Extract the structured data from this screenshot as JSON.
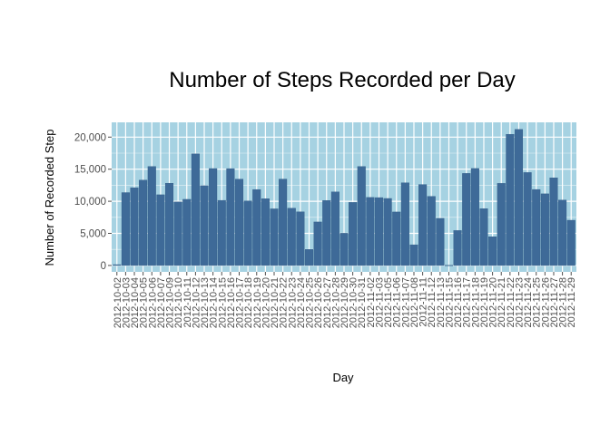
{
  "chart_data": {
    "type": "bar",
    "title": "Number of Steps Recorded per Day",
    "xlabel": "Day",
    "ylabel": "Number of Recorded Step",
    "ylim": [
      -1000,
      22300
    ],
    "yticks": [
      0,
      5000,
      10000,
      15000,
      20000
    ],
    "ytick_labels": [
      "0",
      "5,000",
      "10,000",
      "15,000",
      "20,000"
    ],
    "grid": true,
    "legend": "none",
    "colors": {
      "panel": "#a6d2e2",
      "bar": "#3e6a98",
      "bar_edge": "#2f5a86",
      "grid": "#ffffff",
      "tick": "#4d4d4d"
    },
    "categories": [
      "2012-10-02",
      "2012-10-03",
      "2012-10-04",
      "2012-10-05",
      "2012-10-06",
      "2012-10-07",
      "2012-10-09",
      "2012-10-10",
      "2012-10-11",
      "2012-10-12",
      "2012-10-13",
      "2012-10-14",
      "2012-10-15",
      "2012-10-16",
      "2012-10-17",
      "2012-10-18",
      "2012-10-19",
      "2012-10-20",
      "2012-10-21",
      "2012-10-22",
      "2012-10-23",
      "2012-10-24",
      "2012-10-25",
      "2012-10-26",
      "2012-10-27",
      "2012-10-28",
      "2012-10-29",
      "2012-10-30",
      "2012-10-31",
      "2012-11-02",
      "2012-11-03",
      "2012-11-05",
      "2012-11-06",
      "2012-11-07",
      "2012-11-08",
      "2012-11-11",
      "2012-11-12",
      "2012-11-13",
      "2012-11-15",
      "2012-11-16",
      "2012-11-17",
      "2012-11-18",
      "2012-11-19",
      "2012-11-20",
      "2012-11-21",
      "2012-11-22",
      "2012-11-23",
      "2012-11-24",
      "2012-11-25",
      "2012-11-26",
      "2012-11-27",
      "2012-11-28",
      "2012-11-29"
    ],
    "values": [
      126,
      11352,
      12116,
      13294,
      15420,
      11015,
      12811,
      9900,
      10304,
      17382,
      12426,
      15098,
      10139,
      15084,
      13452,
      10056,
      11829,
      10395,
      8821,
      13460,
      8918,
      8355,
      2492,
      6778,
      10119,
      11458,
      5018,
      9819,
      15414,
      10600,
      10571,
      10439,
      8334,
      12883,
      3219,
      12608,
      10765,
      7336,
      41,
      5441,
      14339,
      15110,
      8841,
      4472,
      12787,
      20427,
      21194,
      14478,
      11834,
      11162,
      13646,
      10183,
      7047
    ]
  }
}
